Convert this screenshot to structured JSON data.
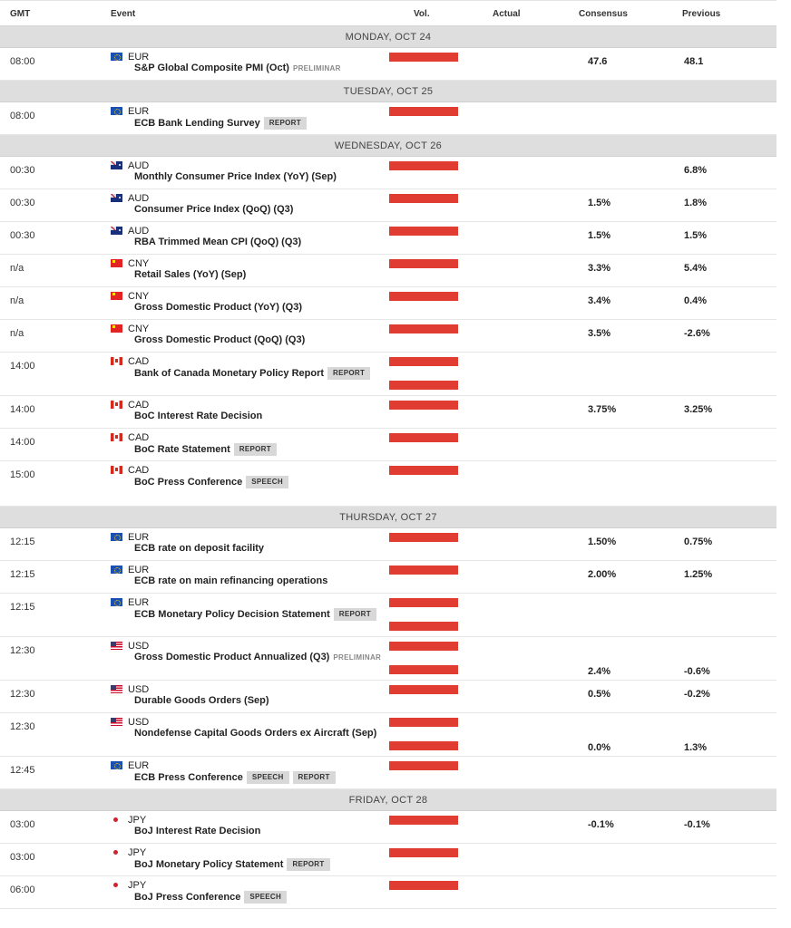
{
  "header": {
    "gmt": "GMT",
    "event": "Event",
    "vol": "Vol.",
    "actual": "Actual",
    "consensus": "Consensus",
    "previous": "Previous"
  },
  "days": [
    {
      "label": "MONDAY, OCT 24",
      "events": [
        {
          "time": "08:00",
          "flag": "eu-flag-icon",
          "currency": "EUR",
          "name": "S&P Global Composite PMI (Oct)",
          "tags": [],
          "note": "PRELIMINAR",
          "consensus": "47.6",
          "previous": "48.1"
        }
      ]
    },
    {
      "label": "TUESDAY, OCT 25",
      "events": [
        {
          "time": "08:00",
          "flag": "eu-flag-icon",
          "currency": "EUR",
          "name": "ECB Bank Lending Survey",
          "tags": [
            "REPORT"
          ],
          "note": "",
          "consensus": "",
          "previous": ""
        }
      ]
    },
    {
      "label": "WEDNESDAY, OCT 26",
      "events": [
        {
          "time": "00:30",
          "flag": "au-flag-icon",
          "currency": "AUD",
          "name": "Monthly Consumer Price Index (YoY) (Sep)",
          "tags": [],
          "note": "",
          "consensus": "",
          "previous": "6.8%"
        },
        {
          "time": "00:30",
          "flag": "au-flag-icon",
          "currency": "AUD",
          "name": "Consumer Price Index (QoQ) (Q3)",
          "tags": [],
          "note": "",
          "consensus": "1.5%",
          "previous": "1.8%"
        },
        {
          "time": "00:30",
          "flag": "au-flag-icon",
          "currency": "AUD",
          "name": "RBA Trimmed Mean CPI (QoQ) (Q3)",
          "tags": [],
          "note": "",
          "consensus": "1.5%",
          "previous": "1.5%"
        },
        {
          "time": "n/a",
          "flag": "cn-flag-icon",
          "currency": "CNY",
          "name": "Retail Sales (YoY) (Sep)",
          "tags": [],
          "note": "",
          "consensus": "3.3%",
          "previous": "5.4%"
        },
        {
          "time": "n/a",
          "flag": "cn-flag-icon",
          "currency": "CNY",
          "name": "Gross Domestic Product (YoY) (Q3)",
          "tags": [],
          "note": "",
          "consensus": "3.4%",
          "previous": "0.4%"
        },
        {
          "time": "n/a",
          "flag": "cn-flag-icon",
          "currency": "CNY",
          "name": "Gross Domestic Product (QoQ) (Q3)",
          "tags": [],
          "note": "",
          "consensus": "3.5%",
          "previous": "-2.6%"
        },
        {
          "time": "14:00",
          "flag": "ca-flag-icon",
          "currency": "CAD",
          "name": "Bank of Canada Monetary Policy Report",
          "tags": [
            "REPORT"
          ],
          "note": "",
          "consensus": "",
          "previous": "",
          "tall": true
        },
        {
          "time": "14:00",
          "flag": "ca-flag-icon",
          "currency": "CAD",
          "name": "BoC Interest Rate Decision",
          "tags": [],
          "note": "",
          "consensus": "3.75%",
          "previous": "3.25%"
        },
        {
          "time": "14:00",
          "flag": "ca-flag-icon",
          "currency": "CAD",
          "name": "BoC Rate Statement",
          "tags": [
            "REPORT"
          ],
          "note": "",
          "consensus": "",
          "previous": ""
        },
        {
          "time": "15:00",
          "flag": "ca-flag-icon",
          "currency": "CAD",
          "name": "BoC Press Conference",
          "tags": [
            "SPEECH"
          ],
          "note": "",
          "consensus": "",
          "previous": "",
          "extra": true
        }
      ]
    },
    {
      "label": "THURSDAY, OCT 27",
      "events": [
        {
          "time": "12:15",
          "flag": "eu-flag-icon",
          "currency": "EUR",
          "name": "ECB rate on deposit facility",
          "tags": [],
          "note": "",
          "consensus": "1.50%",
          "previous": "0.75%"
        },
        {
          "time": "12:15",
          "flag": "eu-flag-icon",
          "currency": "EUR",
          "name": "ECB rate on main refinancing operations",
          "tags": [],
          "note": "",
          "consensus": "2.00%",
          "previous": "1.25%"
        },
        {
          "time": "12:15",
          "flag": "eu-flag-icon",
          "currency": "EUR",
          "name": "ECB Monetary Policy Decision Statement",
          "tags": [
            "REPORT"
          ],
          "note": "",
          "consensus": "",
          "previous": "",
          "tall": true
        },
        {
          "time": "12:30",
          "flag": "us-flag-icon",
          "currency": "USD",
          "name": "Gross Domestic Product Annualized (Q3)",
          "tags": [],
          "note": "PRELIMINAR",
          "consensus": "2.4%",
          "previous": "-0.6%",
          "tall": true
        },
        {
          "time": "12:30",
          "flag": "us-flag-icon",
          "currency": "USD",
          "name": "Durable Goods Orders (Sep)",
          "tags": [],
          "note": "",
          "consensus": "0.5%",
          "previous": "-0.2%"
        },
        {
          "time": "12:30",
          "flag": "us-flag-icon",
          "currency": "USD",
          "name": "Nondefense Capital Goods Orders ex Aircraft (Sep)",
          "tags": [],
          "note": "",
          "consensus": "0.0%",
          "previous": "1.3%",
          "tall": true
        },
        {
          "time": "12:45",
          "flag": "eu-flag-icon",
          "currency": "EUR",
          "name": "ECB Press Conference",
          "tags": [
            "SPEECH",
            "REPORT"
          ],
          "note": "",
          "consensus": "",
          "previous": ""
        }
      ]
    },
    {
      "label": "FRIDAY, OCT 28",
      "events": [
        {
          "time": "03:00",
          "flag": "jp-flag-icon",
          "currency": "JPY",
          "name": "BoJ Interest Rate Decision",
          "tags": [],
          "note": "",
          "consensus": "-0.1%",
          "previous": "-0.1%"
        },
        {
          "time": "03:00",
          "flag": "jp-flag-icon",
          "currency": "JPY",
          "name": "BoJ Monetary Policy Statement",
          "tags": [
            "REPORT"
          ],
          "note": "",
          "consensus": "",
          "previous": ""
        },
        {
          "time": "06:00",
          "flag": "jp-flag-icon",
          "currency": "JPY",
          "name": "BoJ Press Conference",
          "tags": [
            "SPEECH"
          ],
          "note": "",
          "consensus": "",
          "previous": ""
        }
      ]
    }
  ]
}
